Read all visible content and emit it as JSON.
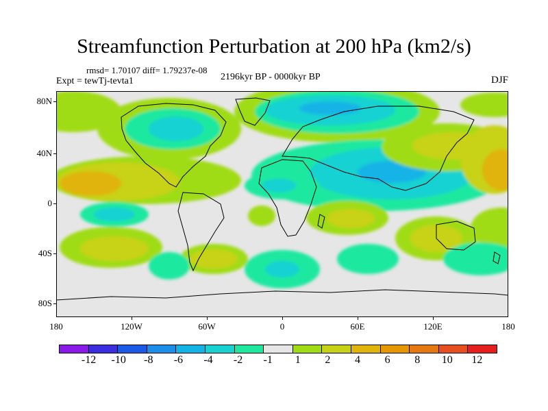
{
  "title": "Streamfunction Perturbation at 200 hPa (km2/s)",
  "stats": "rmsd= 1.70107 diff= 1.79237e-08",
  "experiment": "Expt = tewTj-tevta1",
  "period": "2196kyr BP - 0000kyr BP",
  "season": "DJF",
  "lat_labels": [
    "80N",
    "40N",
    "0",
    "40S",
    "80S"
  ],
  "lon_labels": [
    "180",
    "120W",
    "60W",
    "0",
    "60E",
    "120E",
    "180"
  ],
  "colorbar": {
    "colors": [
      "#8a1ae8",
      "#3a2ee0",
      "#1a5ae6",
      "#1a8ee8",
      "#12b4e6",
      "#18d2d2",
      "#1ee8a0",
      "#e6e6e6",
      "#a0dc14",
      "#c8d214",
      "#e0b40a",
      "#e69600",
      "#e67814",
      "#e6501e",
      "#e61e1e"
    ],
    "labels": [
      "-12",
      "-10",
      "-8",
      "-6",
      "-4",
      "-2",
      "-1",
      "1",
      "2",
      "4",
      "6",
      "8",
      "10",
      "12"
    ]
  },
  "colors": {
    "background": "#e6e6e6",
    "blue_mid": "#1a8ee8",
    "cyan": "#18d2d2",
    "teal": "#1ee8a0",
    "lime": "#a0dc14",
    "olive": "#c8d214",
    "amber": "#e0b40a",
    "coastline": "#000000"
  }
}
